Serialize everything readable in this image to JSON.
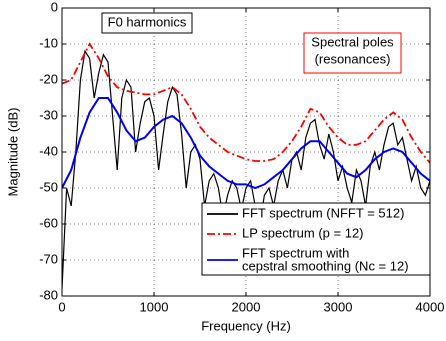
{
  "chart_data": {
    "type": "line",
    "xlabel": "Frequency (Hz)",
    "ylabel": "Magnitude (dB)",
    "xlim": [
      0,
      4000
    ],
    "ylim": [
      -80,
      0
    ],
    "xticks": [
      0,
      1000,
      2000,
      3000,
      4000
    ],
    "yticks": [
      0,
      -10,
      -20,
      -30,
      -40,
      -50,
      -60,
      -70,
      -80
    ],
    "annotations": [
      {
        "lines": [
          "F0 harmonics"
        ],
        "color": "#000000"
      },
      {
        "lines": [
          "Spectral poles",
          "(resonances)"
        ],
        "color": "#ff0000"
      }
    ],
    "series": [
      {
        "name": [
          "FFT spectrum (NFFT = 512)"
        ],
        "color": "#000000",
        "dash": "solid",
        "x": [
          0,
          50,
          100,
          150,
          200,
          250,
          300,
          350,
          400,
          450,
          500,
          550,
          600,
          650,
          700,
          750,
          800,
          850,
          900,
          950,
          1000,
          1050,
          1100,
          1150,
          1200,
          1250,
          1300,
          1350,
          1400,
          1450,
          1500,
          1550,
          1600,
          1650,
          1700,
          1750,
          1800,
          1850,
          1900,
          1950,
          2000,
          2050,
          2100,
          2150,
          2200,
          2250,
          2300,
          2350,
          2400,
          2450,
          2500,
          2550,
          2600,
          2650,
          2700,
          2750,
          2800,
          2850,
          2900,
          2950,
          3000,
          3050,
          3100,
          3150,
          3200,
          3250,
          3300,
          3350,
          3400,
          3450,
          3500,
          3550,
          3600,
          3650,
          3700,
          3750,
          3800,
          3850,
          3900,
          3950,
          4000
        ],
        "values": [
          -78,
          -50,
          -55,
          -40,
          -20,
          -12,
          -14,
          -25,
          -18,
          -13,
          -15,
          -30,
          -45,
          -25,
          -20,
          -22,
          -40,
          -32,
          -26,
          -25,
          -30,
          -45,
          -35,
          -26,
          -22,
          -24,
          -35,
          -50,
          -40,
          -38,
          -42,
          -55,
          -48,
          -46,
          -50,
          -58,
          -52,
          -48,
          -50,
          -56,
          -50,
          -48,
          -55,
          -60,
          -52,
          -50,
          -55,
          -48,
          -45,
          -50,
          -42,
          -40,
          -45,
          -36,
          -32,
          -31,
          -38,
          -42,
          -35,
          -40,
          -48,
          -44,
          -50,
          -54,
          -45,
          -48,
          -55,
          -44,
          -40,
          -45,
          -38,
          -33,
          -32,
          -38,
          -36,
          -42,
          -48,
          -44,
          -50,
          -52,
          -48
        ]
      },
      {
        "name": [
          "LP spectrum (p = 12)"
        ],
        "color": "#ff0000",
        "dash": "dashdot",
        "x": [
          0,
          100,
          200,
          300,
          400,
          500,
          600,
          700,
          800,
          900,
          1000,
          1100,
          1200,
          1300,
          1400,
          1500,
          1600,
          1700,
          1800,
          1900,
          2000,
          2100,
          2200,
          2300,
          2400,
          2500,
          2600,
          2700,
          2800,
          2900,
          3000,
          3100,
          3200,
          3300,
          3400,
          3500,
          3600,
          3700,
          3800,
          3900,
          4000
        ],
        "values": [
          -21,
          -20,
          -15,
          -10,
          -14,
          -19,
          -22,
          -23,
          -23.5,
          -24,
          -24,
          -23,
          -22,
          -24,
          -28,
          -33,
          -36,
          -38,
          -40,
          -41,
          -42,
          -42.5,
          -42.5,
          -42,
          -40,
          -37,
          -33,
          -28,
          -29,
          -33,
          -36,
          -38,
          -38,
          -37,
          -34,
          -31,
          -29,
          -31,
          -36,
          -40,
          -43
        ]
      },
      {
        "name": [
          "FFT spectrum with",
          "cepstral smoothing (Nc = 12)"
        ],
        "color": "#0000ff",
        "dash": "solid",
        "x": [
          0,
          100,
          200,
          300,
          400,
          500,
          600,
          700,
          800,
          900,
          1000,
          1100,
          1200,
          1300,
          1400,
          1500,
          1600,
          1700,
          1800,
          1900,
          2000,
          2100,
          2200,
          2300,
          2400,
          2500,
          2600,
          2700,
          2800,
          2900,
          3000,
          3100,
          3200,
          3300,
          3400,
          3500,
          3600,
          3700,
          3800,
          3900,
          4000
        ],
        "values": [
          -50,
          -45,
          -36,
          -29,
          -25,
          -25,
          -29,
          -34,
          -37,
          -36,
          -33,
          -31,
          -30,
          -32,
          -36,
          -41,
          -44,
          -46,
          -48,
          -49,
          -49,
          -50,
          -49,
          -47,
          -45,
          -42,
          -39,
          -37,
          -37,
          -40,
          -43,
          -46,
          -47,
          -45,
          -42,
          -40,
          -39,
          -40,
          -43,
          -46,
          -48
        ]
      }
    ]
  }
}
